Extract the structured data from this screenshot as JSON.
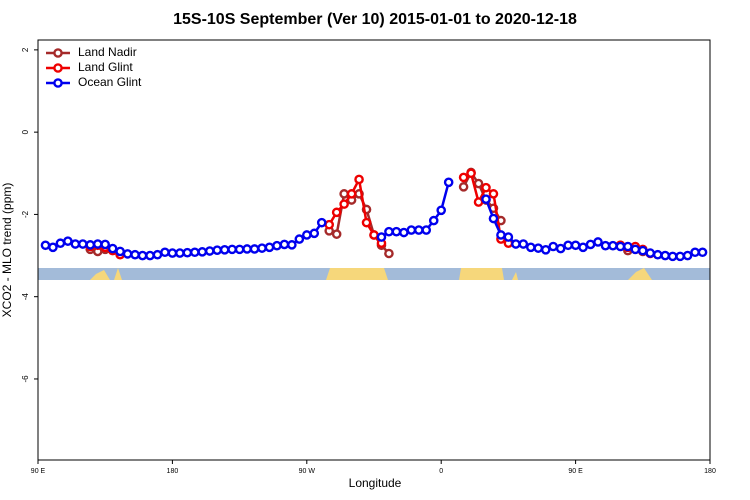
{
  "chart_data": {
    "type": "line",
    "title": "15S-10S September (Ver 10)   2015-01-01 to 2020-12-18",
    "xlabel": "Longitude",
    "ylabel": "XCO2 - MLO trend (ppm)",
    "xlim": [
      90,
      540
    ],
    "ylim": [
      -7.97,
      2.24
    ],
    "xticks": [
      {
        "value": 90,
        "label": "90 E"
      },
      180,
      {
        "value": 270,
        "label": "90 W"
      },
      {
        "value": 360,
        "label": "0"
      },
      {
        "value": 450,
        "label": "90 E"
      },
      {
        "value": 540,
        "label": "180"
      }
    ],
    "yticks": [
      2,
      0,
      -2,
      -4,
      -6
    ],
    "legend": "top-left",
    "x": [
      95,
      100,
      105,
      110,
      115,
      120,
      125,
      130,
      135,
      140,
      145,
      150,
      155,
      160,
      165,
      170,
      175,
      180,
      185,
      190,
      195,
      200,
      205,
      210,
      215,
      220,
      225,
      230,
      235,
      240,
      245,
      250,
      255,
      260,
      265,
      270,
      275,
      280,
      285,
      290,
      295,
      300,
      305,
      310,
      315,
      320,
      325,
      330,
      335,
      340,
      345,
      350,
      355,
      360,
      365,
      370,
      375,
      380,
      385,
      390,
      395,
      400,
      405,
      410,
      415,
      420,
      425,
      430,
      435,
      440,
      445,
      450,
      455,
      460,
      465,
      470,
      475,
      480,
      485,
      490,
      495,
      500,
      505,
      510,
      515,
      520,
      525,
      530,
      535
    ],
    "series": [
      {
        "name": "Land Nadir",
        "color": "#a52a2a",
        "values": [
          null,
          null,
          null,
          null,
          null,
          null,
          -2.85,
          -2.9,
          -2.85,
          null,
          null,
          null,
          null,
          null,
          null,
          null,
          null,
          null,
          null,
          null,
          null,
          null,
          null,
          null,
          null,
          null,
          null,
          null,
          null,
          null,
          null,
          null,
          null,
          null,
          null,
          null,
          null,
          null,
          -2.4,
          -2.48,
          -1.5,
          -1.65,
          -1.5,
          -1.88,
          -2.5,
          -2.75,
          -2.95,
          null,
          null,
          null,
          null,
          null,
          null,
          null,
          null,
          null,
          -1.33,
          -0.98,
          -1.25,
          -1.65,
          -1.85,
          -2.15,
          null,
          null,
          null,
          null,
          null,
          null,
          null,
          null,
          null,
          null,
          null,
          null,
          null,
          null,
          null,
          -2.75,
          -2.88,
          -2.85,
          -2.9,
          null,
          null,
          null,
          null,
          null,
          null,
          null,
          null
        ]
      },
      {
        "name": "Land Glint",
        "color": "#ee0000",
        "values": [
          null,
          null,
          null,
          null,
          null,
          null,
          -2.78,
          -2.75,
          -2.8,
          -2.88,
          -2.98,
          null,
          null,
          null,
          null,
          null,
          null,
          null,
          null,
          null,
          null,
          null,
          null,
          null,
          null,
          null,
          null,
          null,
          null,
          null,
          null,
          null,
          null,
          null,
          null,
          null,
          null,
          null,
          -2.25,
          -1.95,
          -1.75,
          -1.5,
          -1.15,
          -2.2,
          -2.5,
          -2.7,
          null,
          null,
          null,
          null,
          null,
          null,
          null,
          null,
          null,
          null,
          -1.1,
          -1.0,
          -1.7,
          -1.35,
          -1.5,
          -2.6,
          -2.7,
          null,
          null,
          null,
          null,
          null,
          null,
          null,
          null,
          null,
          null,
          null,
          null,
          null,
          null,
          -2.75,
          -2.8,
          -2.78,
          -2.85,
          -2.95,
          null,
          null,
          null,
          null,
          null,
          null,
          null
        ]
      },
      {
        "name": "Ocean Glint",
        "color": "#0000ee",
        "values": [
          -2.75,
          -2.8,
          -2.7,
          -2.65,
          -2.72,
          -2.72,
          -2.74,
          -2.72,
          -2.73,
          -2.83,
          -2.9,
          -2.96,
          -2.98,
          -3.0,
          -3.0,
          -2.98,
          -2.92,
          -2.94,
          -2.94,
          -2.93,
          -2.92,
          -2.91,
          -2.89,
          -2.87,
          -2.86,
          -2.85,
          -2.85,
          -2.84,
          -2.84,
          -2.82,
          -2.8,
          -2.76,
          -2.73,
          -2.74,
          -2.6,
          -2.5,
          -2.46,
          -2.2,
          null,
          null,
          null,
          null,
          null,
          null,
          null,
          -2.55,
          -2.42,
          -2.42,
          -2.44,
          -2.38,
          -2.38,
          -2.38,
          -2.15,
          -1.9,
          -1.22,
          null,
          null,
          null,
          null,
          -1.63,
          -2.1,
          -2.5,
          -2.55,
          -2.72,
          -2.72,
          -2.8,
          -2.82,
          -2.86,
          -2.78,
          -2.83,
          -2.75,
          -2.75,
          -2.8,
          -2.73,
          -2.67,
          -2.76,
          -2.76,
          -2.78,
          -2.78,
          -2.85,
          -2.88,
          -2.94,
          -2.98,
          -3.0,
          -3.02,
          -3.02,
          -3.0,
          -2.92,
          -2.92
        ]
      }
    ]
  }
}
